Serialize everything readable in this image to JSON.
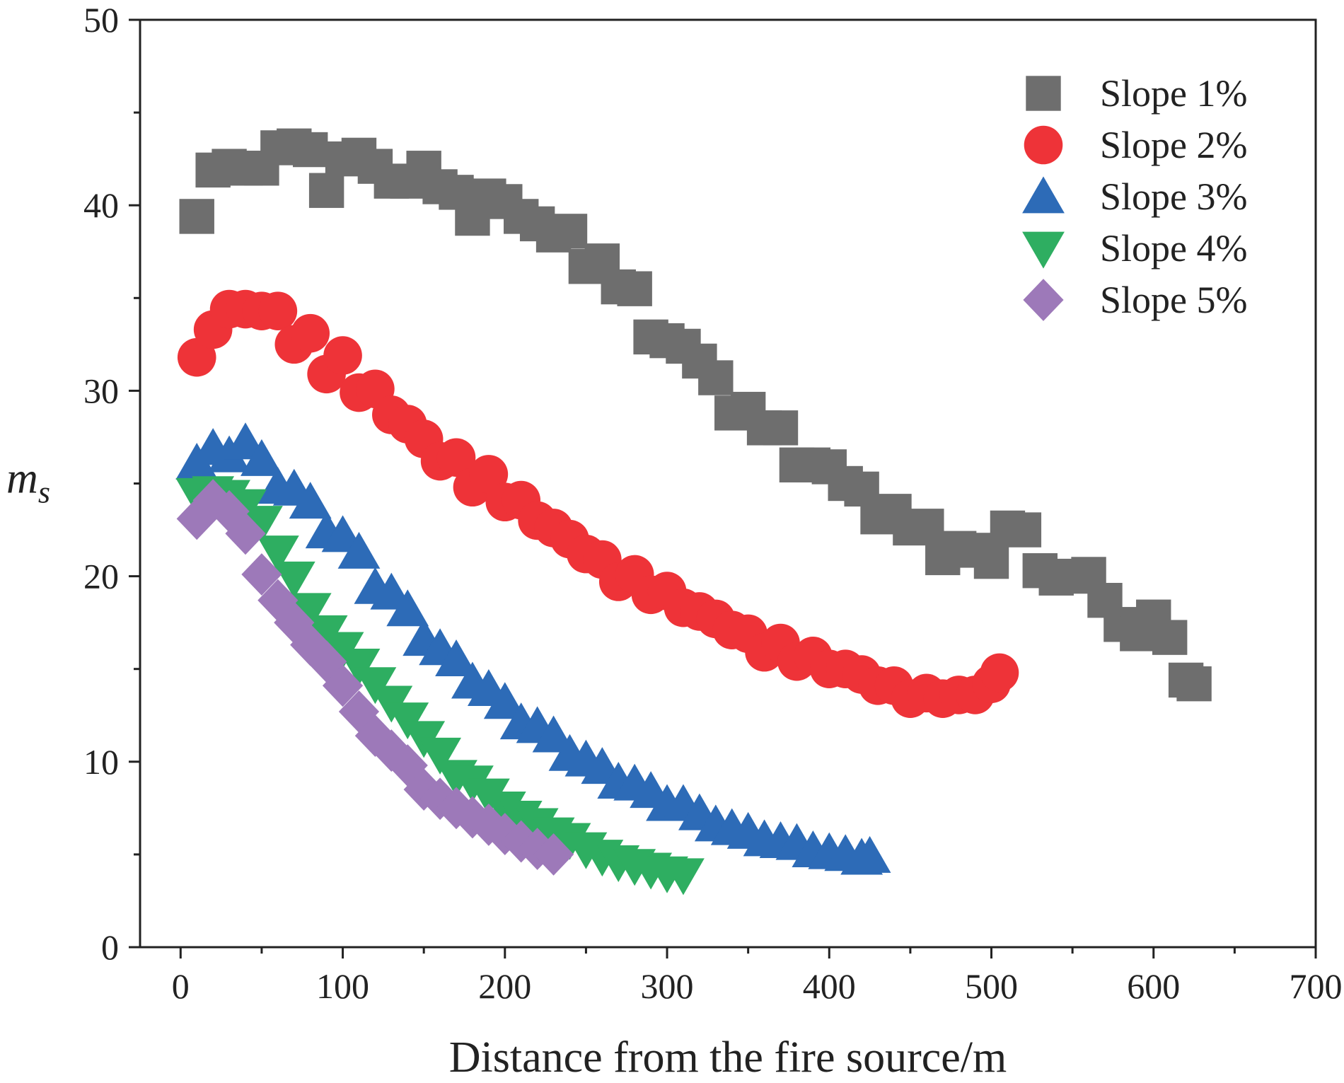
{
  "chart_data": {
    "type": "scatter",
    "title": "",
    "xlabel": "Distance from the fire source/m",
    "ylabel": "m",
    "ylabel_subscript": "s",
    "xlim": [
      -25,
      700
    ],
    "ylim": [
      0,
      50
    ],
    "xticks": [
      0,
      100,
      200,
      300,
      400,
      500,
      600,
      700
    ],
    "yticks": [
      0,
      10,
      20,
      30,
      40,
      50
    ],
    "x_tick_labels": [
      "0",
      "100",
      "200",
      "300",
      "400",
      "500",
      "600",
      "700"
    ],
    "y_tick_labels": [
      "0",
      "10",
      "20",
      "30",
      "40",
      "50"
    ],
    "grid": false,
    "legend_position": "top-right",
    "series": [
      {
        "name": "Slope 1%",
        "marker": "square",
        "color": "#6e6e6e",
        "x": [
          10,
          20,
          30,
          40,
          50,
          60,
          70,
          80,
          90,
          100,
          110,
          120,
          130,
          140,
          150,
          160,
          170,
          180,
          190,
          200,
          210,
          220,
          230,
          240,
          250,
          260,
          270,
          280,
          290,
          300,
          310,
          320,
          330,
          340,
          350,
          360,
          370,
          380,
          390,
          400,
          410,
          420,
          430,
          440,
          450,
          460,
          470,
          480,
          490,
          500,
          510,
          520,
          530,
          540,
          550,
          560,
          570,
          580,
          590,
          600,
          610,
          620,
          625
        ],
        "y": [
          39.4,
          41.9,
          42.1,
          42.0,
          42.0,
          43.1,
          43.2,
          43.0,
          40.8,
          42.5,
          42.7,
          42.1,
          41.3,
          41.3,
          42.0,
          41.0,
          40.7,
          39.3,
          40.5,
          40.2,
          39.4,
          39.0,
          38.4,
          38.6,
          36.7,
          37.0,
          35.6,
          35.5,
          32.9,
          32.7,
          32.4,
          31.6,
          30.7,
          28.8,
          29.0,
          28.0,
          28.0,
          26.0,
          26.0,
          25.9,
          25.0,
          24.7,
          23.2,
          23.5,
          22.6,
          22.7,
          21.0,
          21.5,
          21.4,
          20.8,
          22.6,
          22.5,
          20.3,
          19.9,
          20.0,
          20.1,
          18.7,
          17.4,
          16.9,
          17.8,
          16.7,
          14.4,
          14.2
        ]
      },
      {
        "name": "Slope 2%",
        "marker": "circle",
        "color": "#ee3338",
        "x": [
          10,
          20,
          30,
          40,
          50,
          60,
          70,
          80,
          90,
          100,
          110,
          120,
          130,
          140,
          150,
          160,
          170,
          180,
          190,
          200,
          210,
          220,
          230,
          240,
          250,
          260,
          270,
          280,
          290,
          300,
          310,
          320,
          330,
          340,
          350,
          360,
          370,
          380,
          390,
          400,
          410,
          420,
          430,
          440,
          450,
          460,
          470,
          480,
          490,
          500,
          505
        ],
        "y": [
          31.8,
          33.3,
          34.4,
          34.4,
          34.3,
          34.3,
          32.5,
          33.1,
          30.9,
          31.9,
          29.9,
          30.1,
          28.7,
          28.2,
          27.4,
          26.2,
          26.4,
          24.8,
          25.5,
          24.0,
          24.1,
          23.0,
          22.6,
          22.0,
          21.2,
          20.9,
          19.7,
          20.1,
          19.0,
          19.2,
          18.3,
          18.1,
          17.7,
          17.1,
          16.9,
          15.9,
          16.4,
          15.4,
          15.7,
          15.0,
          15.0,
          14.7,
          14.1,
          14.1,
          13.4,
          13.7,
          13.4,
          13.6,
          13.6,
          14.2,
          14.8
        ]
      },
      {
        "name": "Slope 3%",
        "marker": "triangle-up",
        "color": "#2d6bb7",
        "x": [
          10,
          20,
          30,
          40,
          50,
          60,
          70,
          80,
          90,
          100,
          110,
          120,
          130,
          140,
          150,
          160,
          170,
          180,
          190,
          200,
          210,
          220,
          230,
          240,
          250,
          260,
          270,
          280,
          290,
          300,
          310,
          320,
          330,
          340,
          350,
          360,
          370,
          380,
          390,
          400,
          410,
          420,
          425
        ],
        "y": [
          26.1,
          26.9,
          26.5,
          27.2,
          26.3,
          24.8,
          24.7,
          24.0,
          22.4,
          22.2,
          21.3,
          19.4,
          19.1,
          18.2,
          16.6,
          16.1,
          15.5,
          14.3,
          13.9,
          13.2,
          12.1,
          11.9,
          11.4,
          10.4,
          10.1,
          9.7,
          8.9,
          8.8,
          8.4,
          7.7,
          7.7,
          7.2,
          6.6,
          6.4,
          6.2,
          5.8,
          5.7,
          5.6,
          5.2,
          5.1,
          5.0,
          4.8,
          4.9
        ]
      },
      {
        "name": "Slope 4%",
        "marker": "triangle-down",
        "color": "#2eae61",
        "x": [
          10,
          20,
          30,
          40,
          50,
          60,
          70,
          80,
          90,
          100,
          110,
          120,
          130,
          140,
          150,
          160,
          170,
          180,
          190,
          200,
          210,
          220,
          230,
          240,
          250,
          260,
          270,
          280,
          290,
          300,
          310
        ],
        "y": [
          24.4,
          24.5,
          24.3,
          23.8,
          22.9,
          21.3,
          19.9,
          18.2,
          17.0,
          16.1,
          15.2,
          14.2,
          13.2,
          12.3,
          11.3,
          10.4,
          9.2,
          8.9,
          8.2,
          7.5,
          7.0,
          6.6,
          6.1,
          5.8,
          5.3,
          4.9,
          4.6,
          4.4,
          4.2,
          4.0,
          3.9
        ]
      },
      {
        "name": "Slope 5%",
        "marker": "diamond",
        "color": "#9d79b9",
        "x": [
          10,
          20,
          30,
          40,
          50,
          60,
          70,
          80,
          90,
          100,
          110,
          120,
          130,
          140,
          150,
          160,
          170,
          180,
          190,
          200,
          210,
          220,
          230
        ],
        "y": [
          23.1,
          24.1,
          23.5,
          22.3,
          20.1,
          18.7,
          17.5,
          16.3,
          15.4,
          14.1,
          12.7,
          11.4,
          10.6,
          9.8,
          8.5,
          8.0,
          7.5,
          7.0,
          6.6,
          6.1,
          5.7,
          5.3,
          5.0
        ]
      }
    ]
  }
}
